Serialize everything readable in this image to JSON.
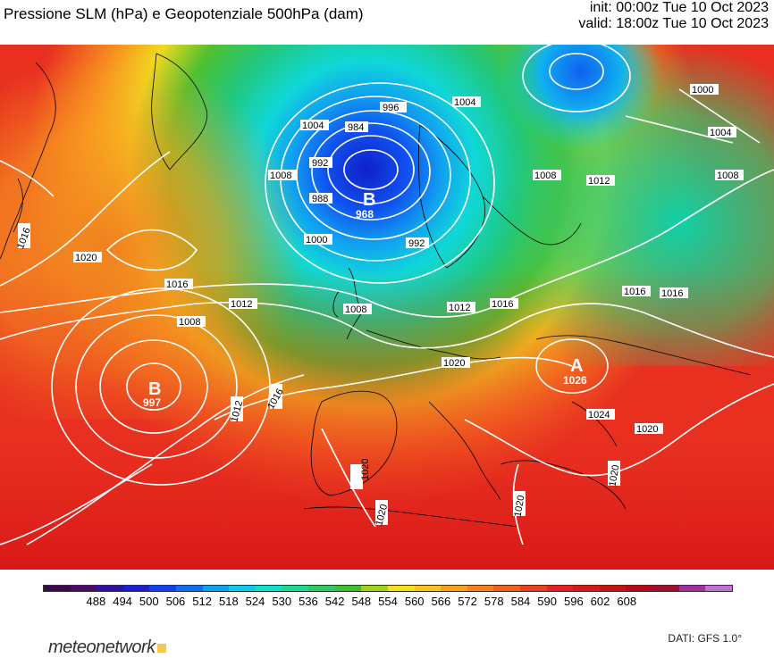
{
  "title": "Pressione SLM (hPa) e Geopotenziale 500hPa (dam)",
  "meta": {
    "init": "init: 00:00z Tue 10 Oct 2023",
    "valid": "valid: 18:00z Tue 10 Oct 2023"
  },
  "colorbar": {
    "labels": [
      "488",
      "494",
      "500",
      "506",
      "512",
      "518",
      "524",
      "530",
      "536",
      "542",
      "548",
      "554",
      "560",
      "566",
      "572",
      "578",
      "584",
      "590",
      "596",
      "602",
      "608"
    ],
    "colors": [
      "#3a0a4a",
      "#4a0a6a",
      "#3010a0",
      "#1a20d0",
      "#1040f0",
      "#1070f0",
      "#10a0f0",
      "#10c8e8",
      "#10e0c8",
      "#20d890",
      "#30c860",
      "#40c030",
      "#a0d020",
      "#f0e020",
      "#f8c020",
      "#f8a020",
      "#f88020",
      "#f06020",
      "#e84020",
      "#e82020",
      "#d81818",
      "#c81010",
      "#b80818",
      "#a01030",
      "#a030a0",
      "#c070d0"
    ]
  },
  "map": {
    "lows": [
      {
        "symbol": "B",
        "value": "968"
      },
      {
        "symbol": "B",
        "value": "997"
      }
    ],
    "highs": [
      {
        "symbol": "A",
        "value": "1026"
      }
    ],
    "isobar_labels": [
      "996",
      "1004",
      "984",
      "992",
      "1000",
      "1008",
      "988",
      "992",
      "1004",
      "1000",
      "1004",
      "1008",
      "1012",
      "1008",
      "1016",
      "1016",
      "1020",
      "1016",
      "1012",
      "1008",
      "1008",
      "1012",
      "1016",
      "1020",
      "1024",
      "1020",
      "1020",
      "1020",
      "1020",
      "1020",
      "1012",
      "1016",
      "1016"
    ]
  },
  "brand": {
    "name": "meteonetwork"
  },
  "source": "DATI: GFS 1.0°"
}
